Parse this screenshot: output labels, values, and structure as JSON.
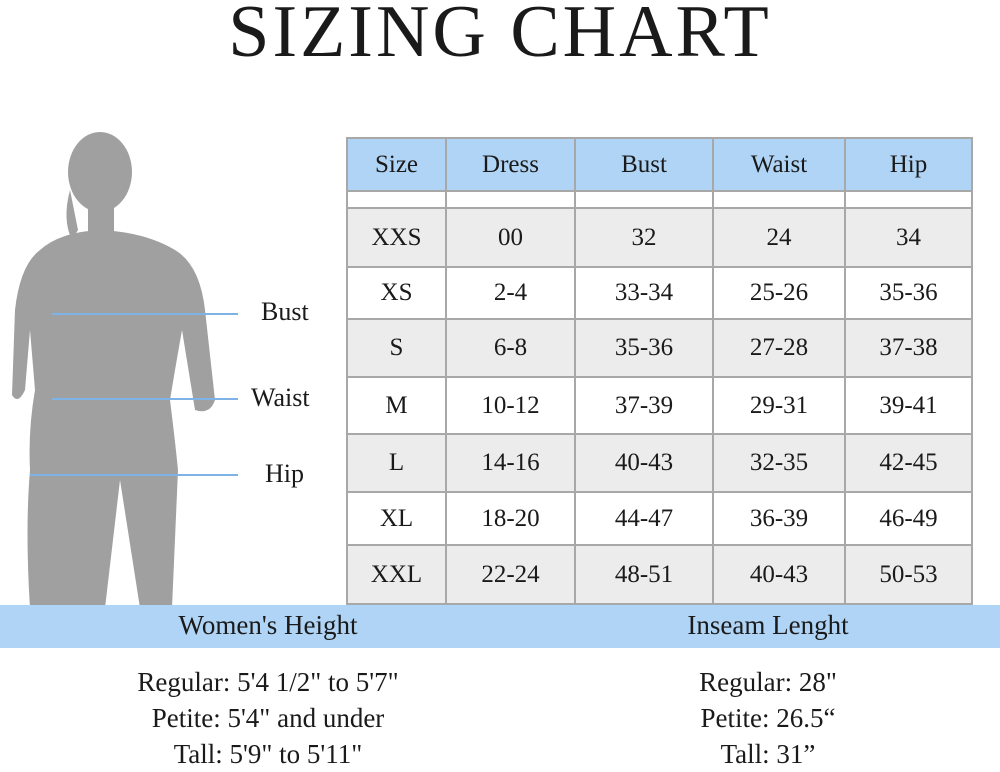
{
  "title": "SIZING CHART",
  "body_labels": {
    "bust": "Bust",
    "waist": "Waist",
    "hip": "Hip"
  },
  "colors": {
    "header_bg": "#b0d4f5",
    "row_alt": "#ececec",
    "silhouette": "#a0a0a0",
    "marker_line": "#7fb2e5"
  },
  "table": {
    "headers": [
      "Size",
      "Dress",
      "Bust",
      "Waist",
      "Hip"
    ],
    "rows": [
      [
        "XXS",
        "00",
        "32",
        "24",
        "34"
      ],
      [
        "XS",
        "2-4",
        "33-34",
        "25-26",
        "35-36"
      ],
      [
        "S",
        "6-8",
        "35-36",
        "27-28",
        "37-38"
      ],
      [
        "M",
        "10-12",
        "37-39",
        "29-31",
        "39-41"
      ],
      [
        "L",
        "14-16",
        "40-43",
        "32-35",
        "42-45"
      ],
      [
        "XL",
        "18-20",
        "44-47",
        "36-39",
        "46-49"
      ],
      [
        "XXL",
        "22-24",
        "48-51",
        "40-43",
        "50-53"
      ]
    ]
  },
  "height": {
    "heading": "Women's Height",
    "lines": [
      "Regular: 5'4 1/2\" to 5'7\"",
      "Petite: 5'4\" and under",
      "Tall: 5'9\" to 5'11\""
    ]
  },
  "inseam": {
    "heading": "Inseam Lenght",
    "lines": [
      "Regular: 28\"",
      "Petite: 26.5“",
      "Tall: 31”"
    ]
  }
}
